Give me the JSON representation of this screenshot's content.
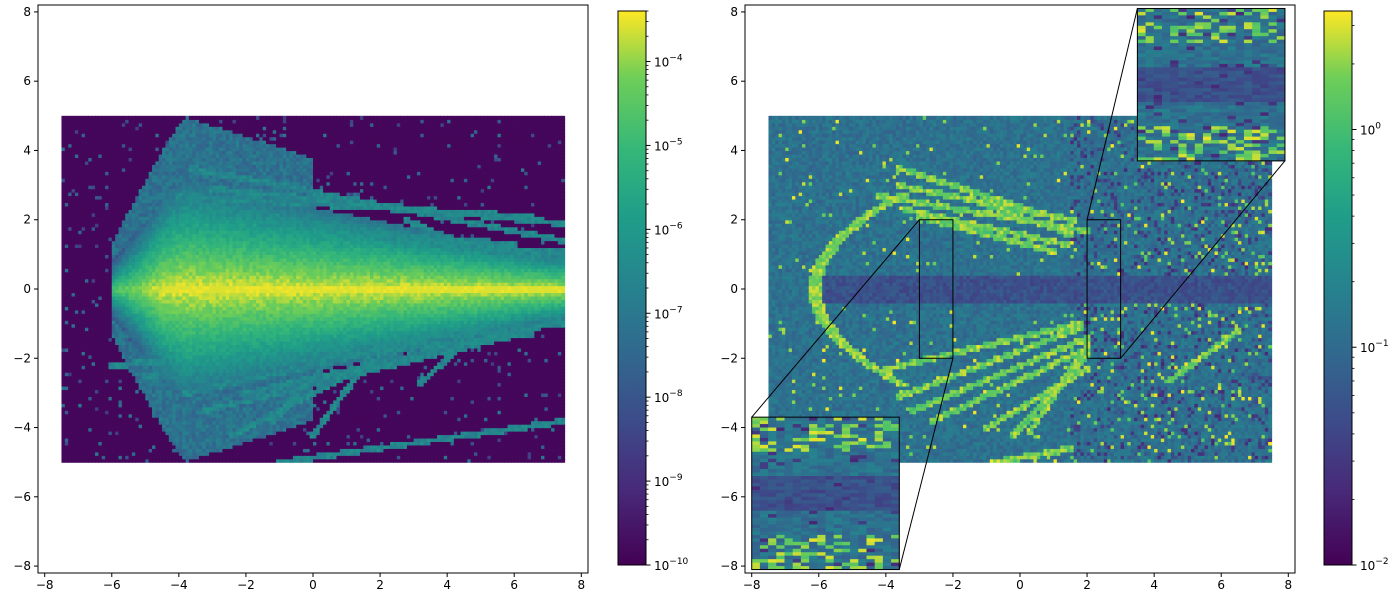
{
  "chart_data": [
    {
      "type": "heatmap",
      "title": "",
      "xlabel": "",
      "ylabel": "",
      "xlim": [
        -8.2,
        8.2
      ],
      "ylim": [
        -8.2,
        8.2
      ],
      "x_ticks": [
        -8,
        -6,
        -4,
        -2,
        0,
        2,
        4,
        6,
        8
      ],
      "y_ticks": [
        -8,
        -6,
        -4,
        -2,
        0,
        2,
        4,
        6,
        8
      ],
      "x_tick_labels": [
        "−8",
        "−6",
        "−4",
        "−2",
        "0",
        "2",
        "4",
        "6",
        "8"
      ],
      "y_tick_labels": [
        "−8",
        "−6",
        "−4",
        "−2",
        "0",
        "2",
        "4",
        "6",
        "8"
      ],
      "data_extent": {
        "x": [
          -7.5,
          7.5
        ],
        "y": [
          -5,
          5
        ]
      },
      "colormap": "viridis",
      "colorbar": {
        "scale": "log",
        "range": [
          1e-10,
          0.0004
        ],
        "major_ticks": [
          -10,
          -9,
          -8,
          -7,
          -6,
          -5,
          -4
        ],
        "major_tick_labels": [
          "10",
          "10",
          "10",
          "10",
          "10",
          "10",
          "10"
        ],
        "major_tick_exponents": [
          "−10",
          "−9",
          "−8",
          "−7",
          "−6",
          "−5",
          "−4"
        ]
      },
      "features": {
        "background_level": 1e-10,
        "core_beam": {
          "apex_x": -6.0,
          "peak_x": -4.5,
          "centerline_y": 0,
          "peak_value": 0.0003
        },
        "streaks": [
          [
            -3.6,
            3.5,
            7.5,
            1.4
          ],
          [
            -3.0,
            2.9,
            7.5,
            1.9
          ],
          [
            -4.0,
            2.7,
            6.5,
            2.1
          ],
          [
            -2.5,
            2.3,
            7.5,
            0.9
          ],
          [
            -3.6,
            2.1,
            6.0,
            1.3
          ],
          [
            -3.4,
            1.8,
            7.5,
            0.6
          ],
          [
            -4.2,
            1.5,
            7.5,
            0.3
          ],
          [
            2.8,
            2.0,
            4.5,
            1.3
          ],
          [
            2.5,
            1.3,
            7.5,
            1.1
          ],
          [
            -3.8,
            -3.0,
            5.5,
            -1.0
          ],
          [
            -3.2,
            -3.5,
            6.5,
            -1.2
          ],
          [
            -2.4,
            -4.2,
            4.0,
            -1.0
          ],
          [
            -2.0,
            -3.0,
            7.5,
            -0.9
          ],
          [
            -1.2,
            -3.8,
            1.0,
            -1.5
          ],
          [
            0.0,
            -4.2,
            2.0,
            -1.6
          ],
          [
            3.2,
            -2.7,
            4.7,
            -1.4
          ],
          [
            -4.5,
            -1.5,
            7.5,
            -0.5
          ],
          [
            -1.0,
            -5.0,
            7.5,
            -3.8
          ],
          [
            -6.0,
            -2.2,
            7.5,
            -1.0
          ],
          [
            -5.0,
            -2.5,
            6.5,
            -1.3
          ]
        ]
      }
    },
    {
      "type": "heatmap",
      "title": "",
      "xlabel": "",
      "ylabel": "",
      "xlim": [
        -8.2,
        8.2
      ],
      "ylim": [
        -8.2,
        8.2
      ],
      "x_ticks": [
        -8,
        -6,
        -4,
        -2,
        0,
        2,
        4,
        6,
        8
      ],
      "y_ticks": [
        -8,
        -6,
        -4,
        -2,
        0,
        2,
        4,
        6,
        8
      ],
      "x_tick_labels": [
        "−8",
        "−6",
        "−4",
        "−2",
        "0",
        "2",
        "4",
        "6",
        "8"
      ],
      "y_tick_labels": [
        "−8",
        "−6",
        "−4",
        "−2",
        "0",
        "2",
        "4",
        "6",
        "8"
      ],
      "data_extent": {
        "x": [
          -7.5,
          7.5
        ],
        "y": [
          -5,
          5
        ]
      },
      "colormap": "viridis",
      "colorbar": {
        "scale": "log",
        "range": [
          0.01,
          3.5
        ],
        "major_ticks": [
          -2,
          -1,
          0
        ],
        "major_tick_labels": [
          "10",
          "10",
          "10"
        ],
        "major_tick_exponents": [
          "−2",
          "−1",
          "0"
        ]
      },
      "features": {
        "background_level": 0.2,
        "low_band": {
          "x_from": -6.2,
          "y": 0,
          "value": 0.03
        },
        "bright_arc": {
          "apex": [
            -6.1,
            0
          ],
          "upper_end": [
            -3.6,
            2.7
          ],
          "lower_end": [
            -3.6,
            -2.7
          ],
          "value": 2.0
        },
        "streaks": [
          [
            -3.6,
            3.5,
            0.6,
            2.2
          ],
          [
            -3.6,
            3.0,
            1.6,
            2.0
          ],
          [
            -4.2,
            2.7,
            2.0,
            1.7
          ],
          [
            -3.4,
            2.3,
            1.4,
            1.3
          ],
          [
            -3.0,
            2.1,
            1.0,
            1.1
          ],
          [
            -1.5,
            2.6,
            1.5,
            1.6
          ],
          [
            -3.6,
            -3.1,
            1.8,
            -1.1
          ],
          [
            -3.2,
            -3.5,
            2.0,
            -1.4
          ],
          [
            -2.6,
            -3.8,
            2.0,
            -1.7
          ],
          [
            -1.0,
            -4.0,
            2.0,
            -2.3
          ],
          [
            -0.2,
            -4.2,
            2.0,
            -1.9
          ],
          [
            0.3,
            -4.1,
            2.0,
            -1.6
          ],
          [
            -4.0,
            -2.3,
            1.7,
            -1.0
          ],
          [
            -0.8,
            -5.0,
            1.5,
            -4.6
          ],
          [
            4.5,
            -2.6,
            6.5,
            -1.2
          ]
        ]
      },
      "zoom_boxes": [
        {
          "region": {
            "x": [
              -3,
              -2
            ],
            "y": [
              -2,
              2
            ]
          },
          "inset": {
            "x": [
              -8,
              -3.6
            ],
            "y": [
              -8.1,
              -3.7
            ]
          },
          "connectors": [
            [
              -3,
              2,
              -8,
              -3.7
            ],
            [
              -2,
              -2,
              -3.6,
              -8.1
            ]
          ]
        },
        {
          "region": {
            "x": [
              2,
              3
            ],
            "y": [
              -2,
              2
            ]
          },
          "inset": {
            "x": [
              3.5,
              7.9
            ],
            "y": [
              3.7,
              8.1
            ]
          },
          "connectors": [
            [
              2,
              2,
              3.5,
              8.1
            ],
            [
              3,
              -2,
              7.9,
              3.7
            ]
          ]
        }
      ]
    }
  ]
}
